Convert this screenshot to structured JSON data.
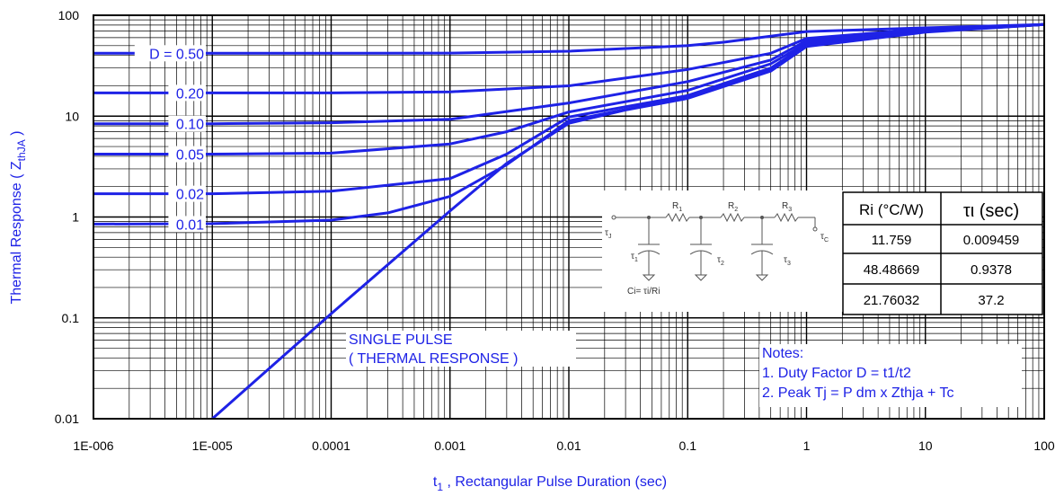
{
  "chart_data": {
    "type": "line",
    "x_scale": "log",
    "y_scale": "log",
    "xlim": [
      1e-06,
      100
    ],
    "ylim": [
      0.01,
      100
    ],
    "grid": true,
    "xlabel": {
      "main": "t",
      "sub": "1",
      "rest": " , Rectangular Pulse Duration (sec)"
    },
    "ylabel": {
      "main": "Thermal Response ( Z",
      "sub": "thJA",
      "rest": " )"
    },
    "x_ticks": [
      {
        "value": 1e-06,
        "label": "1E-006"
      },
      {
        "value": 1e-05,
        "label": "1E-005"
      },
      {
        "value": 0.0001,
        "label": "0.0001"
      },
      {
        "value": 0.001,
        "label": "0.001"
      },
      {
        "value": 0.01,
        "label": "0.01"
      },
      {
        "value": 0.1,
        "label": "0.1"
      },
      {
        "value": 1,
        "label": "1"
      },
      {
        "value": 10,
        "label": "10"
      },
      {
        "value": 100,
        "label": "100"
      }
    ],
    "y_ticks": [
      {
        "value": 0.01,
        "label": "0.01"
      },
      {
        "value": 0.1,
        "label": "0.1"
      },
      {
        "value": 1,
        "label": "1"
      },
      {
        "value": 10,
        "label": "10"
      },
      {
        "value": 100,
        "label": "100"
      }
    ],
    "line_color": "#1e22e6",
    "series": [
      {
        "name": "D = 0.50",
        "x": [
          1e-06,
          1e-05,
          0.0001,
          0.001,
          0.01,
          0.1,
          0.2,
          0.5,
          1,
          10,
          100
        ],
        "y": [
          42,
          42,
          42,
          42.2,
          44,
          50,
          54,
          62,
          69,
          75,
          81
        ]
      },
      {
        "name": "0.20",
        "x": [
          1e-06,
          1e-05,
          0.0001,
          0.001,
          0.01,
          0.1,
          0.5,
          1,
          10,
          100
        ],
        "y": [
          17,
          17,
          17,
          17.4,
          20,
          29,
          42,
          59,
          73,
          81
        ]
      },
      {
        "name": "0.10",
        "x": [
          1e-06,
          1e-05,
          0.0001,
          0.001,
          0.01,
          0.1,
          0.5,
          1,
          10,
          100
        ],
        "y": [
          8.4,
          8.4,
          8.6,
          9.3,
          13.5,
          22,
          36,
          56,
          71,
          81
        ]
      },
      {
        "name": "0.05",
        "x": [
          1e-06,
          1e-05,
          0.0001,
          0.001,
          0.003,
          0.01,
          0.1,
          0.5,
          1,
          10,
          100
        ],
        "y": [
          4.2,
          4.2,
          4.3,
          5.3,
          7,
          11,
          18,
          33,
          53,
          70,
          81
        ]
      },
      {
        "name": "0.02",
        "x": [
          1e-06,
          1e-05,
          0.0001,
          0.001,
          0.003,
          0.01,
          0.1,
          0.5,
          1,
          10,
          100
        ],
        "y": [
          1.7,
          1.7,
          1.8,
          2.4,
          4.2,
          9.8,
          16,
          30,
          51,
          69,
          81
        ]
      },
      {
        "name": "0.01",
        "x": [
          1e-06,
          1e-05,
          0.0001,
          0.0003,
          0.001,
          0.003,
          0.01,
          0.1,
          0.5,
          1,
          10,
          100
        ],
        "y": [
          0.85,
          0.86,
          0.93,
          1.1,
          1.6,
          3.3,
          9,
          15.5,
          29,
          50,
          69,
          81
        ]
      },
      {
        "name": "SINGLE PULSE",
        "x": [
          1e-05,
          0.0001,
          0.001,
          0.003,
          0.01,
          0.03,
          0.1,
          0.5,
          1,
          10,
          100
        ],
        "y": [
          0.01,
          0.11,
          1.15,
          3.4,
          8.5,
          11.5,
          15,
          28,
          49,
          68,
          81
        ]
      }
    ],
    "curve_labels": [
      {
        "text": "D = 0.50",
        "series": 0
      },
      {
        "text": "0.20",
        "series": 1
      },
      {
        "text": "0.10",
        "series": 2
      },
      {
        "text": "0.05",
        "series": 3
      },
      {
        "text": "0.02",
        "series": 4
      },
      {
        "text": "0.01",
        "series": 5
      }
    ],
    "annotations": {
      "single_pulse": [
        "SINGLE PULSE",
        "( THERMAL RESPONSE )"
      ],
      "notes": [
        "Notes:",
        "1. Duty Factor D = t1/t2",
        "2. Peak Tj = P dm x Zthja + Tc"
      ]
    },
    "rc_network": {
      "node_start": {
        "main": "τ",
        "sub": "J"
      },
      "node_end": {
        "main": "τ",
        "sub": "C"
      },
      "resistors": [
        {
          "main": "R",
          "sub": "1"
        },
        {
          "main": "R",
          "sub": "2"
        },
        {
          "main": "R",
          "sub": "3"
        }
      ],
      "capacitors": [
        {
          "main": "τ",
          "sub": "1"
        },
        {
          "main": "τ",
          "sub": "2"
        },
        {
          "main": "τ",
          "sub": "3"
        }
      ],
      "formula": "Ci= τi/Ri"
    },
    "table": {
      "headers": [
        "Ri (°C/W)",
        "τι (sec)"
      ],
      "rows": [
        [
          "11.759",
          "0.009459"
        ],
        [
          "48.48669",
          "0.9378"
        ],
        [
          "21.76032",
          "37.2"
        ]
      ]
    }
  }
}
